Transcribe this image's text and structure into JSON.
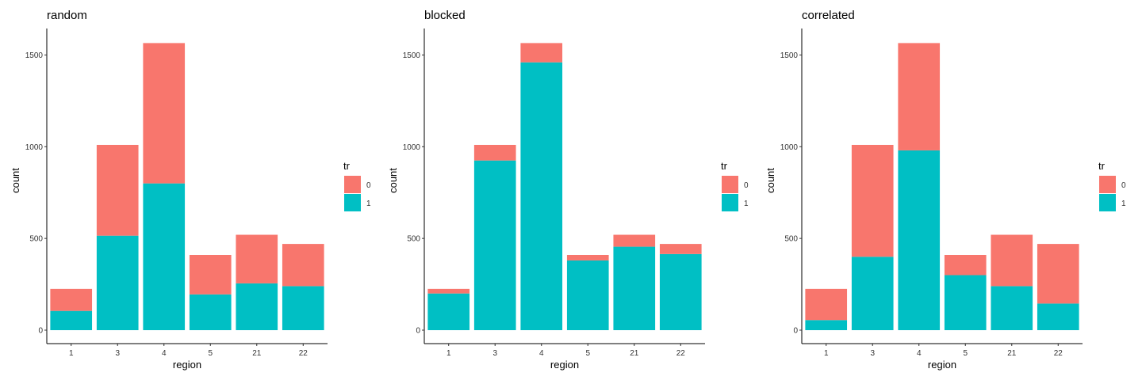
{
  "chart_data": [
    {
      "type": "bar",
      "stacked": true,
      "title": "random",
      "xlabel": "region",
      "ylabel": "count",
      "categories": [
        "1",
        "3",
        "4",
        "5",
        "21",
        "22"
      ],
      "series": [
        {
          "name": "1",
          "values": [
            105,
            515,
            800,
            195,
            255,
            240
          ]
        },
        {
          "name": "0",
          "values": [
            120,
            495,
            765,
            215,
            265,
            230
          ]
        }
      ],
      "ylim": [
        0,
        1640
      ],
      "yticks": [
        0,
        500,
        1000,
        1500
      ],
      "grid": false,
      "legend": {
        "title": "tr",
        "placement": "right",
        "entries": [
          "0",
          "1"
        ]
      },
      "colors": {
        "0": "#F8766D",
        "1": "#00BFC4"
      }
    },
    {
      "type": "bar",
      "stacked": true,
      "title": "blocked",
      "xlabel": "region",
      "ylabel": "count",
      "categories": [
        "1",
        "3",
        "4",
        "5",
        "21",
        "22"
      ],
      "series": [
        {
          "name": "1",
          "values": [
            200,
            925,
            1460,
            380,
            455,
            415
          ]
        },
        {
          "name": "0",
          "values": [
            25,
            85,
            105,
            30,
            65,
            55
          ]
        }
      ],
      "ylim": [
        0,
        1640
      ],
      "yticks": [
        0,
        500,
        1000,
        1500
      ],
      "grid": false,
      "legend": {
        "title": "tr",
        "placement": "right",
        "entries": [
          "0",
          "1"
        ]
      },
      "colors": {
        "0": "#F8766D",
        "1": "#00BFC4"
      }
    },
    {
      "type": "bar",
      "stacked": true,
      "title": "correlated",
      "xlabel": "region",
      "ylabel": "count",
      "categories": [
        "1",
        "3",
        "4",
        "5",
        "21",
        "22"
      ],
      "series": [
        {
          "name": "1",
          "values": [
            55,
            400,
            980,
            300,
            240,
            145
          ]
        },
        {
          "name": "0",
          "values": [
            170,
            610,
            585,
            110,
            280,
            325
          ]
        }
      ],
      "ylim": [
        0,
        1640
      ],
      "yticks": [
        0,
        500,
        1000,
        1500
      ],
      "grid": false,
      "legend": {
        "title": "tr",
        "placement": "right",
        "entries": [
          "0",
          "1"
        ]
      },
      "colors": {
        "0": "#F8766D",
        "1": "#00BFC4"
      }
    }
  ]
}
